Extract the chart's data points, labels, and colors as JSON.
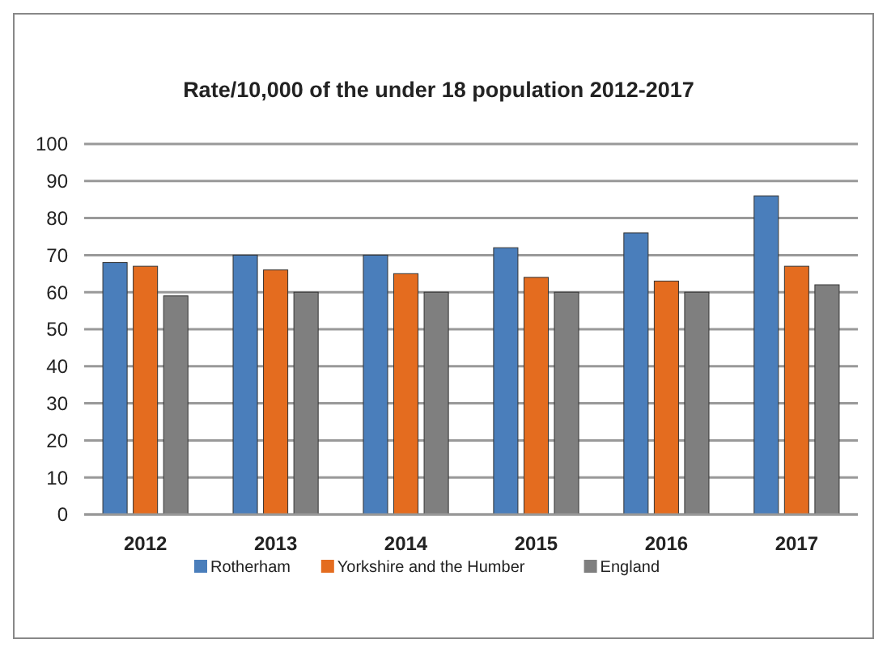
{
  "chart_data": {
    "type": "bar",
    "title": "Rate/10,000 of the under 18 population 2012-2017",
    "categories": [
      "2012",
      "2013",
      "2014",
      "2015",
      "2016",
      "2017"
    ],
    "series": [
      {
        "name": "Rotherham",
        "color": "#4a7ebb",
        "values": [
          68,
          70,
          70,
          72,
          76,
          86
        ]
      },
      {
        "name": "Yorkshire and the Humber",
        "color": "#e46c1f",
        "values": [
          67,
          66,
          65,
          64,
          63,
          67
        ]
      },
      {
        "name": "England",
        "color": "#7f7f7f",
        "values": [
          59,
          60,
          60,
          60,
          60,
          62
        ]
      }
    ],
    "ylim": [
      0,
      100
    ],
    "yticks": [
      0,
      10,
      20,
      30,
      40,
      50,
      60,
      70,
      80,
      90,
      100
    ],
    "grid": "y",
    "legend": "bottom"
  }
}
